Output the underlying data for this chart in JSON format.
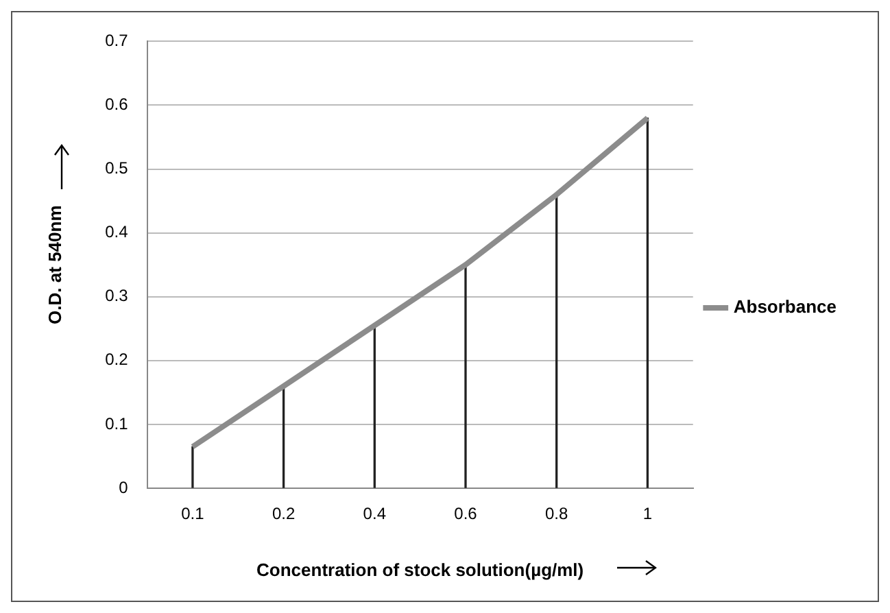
{
  "chart_data": {
    "type": "line",
    "xlabel": "Concentration of stock solution(µg/ml)",
    "ylabel": "O.D. at 540nm",
    "categories": [
      "0.1",
      "0.2",
      "0.4",
      "0.6",
      "0.8",
      "1"
    ],
    "series": [
      {
        "name": "Absorbance",
        "color": "#8c8c8c",
        "values": [
          0.065,
          0.16,
          0.255,
          0.35,
          0.46,
          0.58
        ]
      },
      {
        "type": "bar",
        "color": "#222222",
        "values": [
          0.065,
          0.16,
          0.255,
          0.35,
          0.46,
          0.58
        ]
      }
    ],
    "ylim": [
      0,
      0.7
    ],
    "yticks": [
      0,
      0.1,
      0.2,
      0.3,
      0.4,
      0.5,
      0.6,
      0.7
    ],
    "grid": "y",
    "legend": "right",
    "marker": "none",
    "line_style": "solid"
  }
}
